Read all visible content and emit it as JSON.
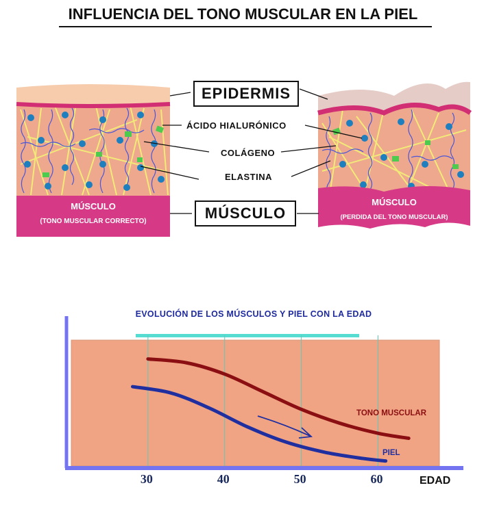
{
  "title": "INFLUENCIA DEL TONO MUSCULAR EN LA PIEL",
  "labels": {
    "epidermis": "EPIDERMIS",
    "acido_hialuronico": "ÁCIDO HIALURÓNICO",
    "colageno": "COLÁGENO",
    "elastina": "ELASTINA",
    "musculo": "MÚSCULO"
  },
  "left_panel": {
    "muscle_title": "MÚSCULO",
    "muscle_subtitle": "(TONO MUSCULAR CORRECTO)"
  },
  "right_panel": {
    "muscle_title": "MÚSCULO",
    "muscle_subtitle": "(PERDIDA DEL TONO MUSCULAR)"
  },
  "chart_data": {
    "type": "line",
    "title": "EVOLUCIÓN DE LOS MÚSCULOS Y PIEL CON LA EDAD",
    "xlabel": "EDAD",
    "ylabel": "",
    "x_ticks": [
      "30",
      "40",
      "50",
      "60"
    ],
    "xlim": [
      20,
      68
    ],
    "ylim": [
      0,
      10
    ],
    "series": [
      {
        "name": "TONO MUSCULAR",
        "color": "#8b0f12",
        "x": [
          30,
          35,
          40,
          45,
          50,
          55,
          60,
          64
        ],
        "y": [
          8.5,
          8.2,
          7.3,
          5.9,
          4.5,
          3.4,
          2.6,
          2.2
        ]
      },
      {
        "name": "PIEL",
        "color": "#1f2fa0",
        "x": [
          28,
          33,
          38,
          43,
          48,
          53,
          58,
          61
        ],
        "y": [
          6.3,
          5.8,
          4.6,
          3.1,
          1.9,
          1.1,
          0.6,
          0.4
        ]
      }
    ],
    "annotation": "arrow indicating decline with age"
  },
  "colors": {
    "epidermis": "#f6ccad",
    "epidermis_aged": "#e5ccc6",
    "dermis": "#eea88e",
    "muscle": "#d63a86",
    "pink_line": "#d22e74",
    "chart_bg": "#f0a484",
    "axis": "#7474f0",
    "cyan": "#56dcd0"
  }
}
